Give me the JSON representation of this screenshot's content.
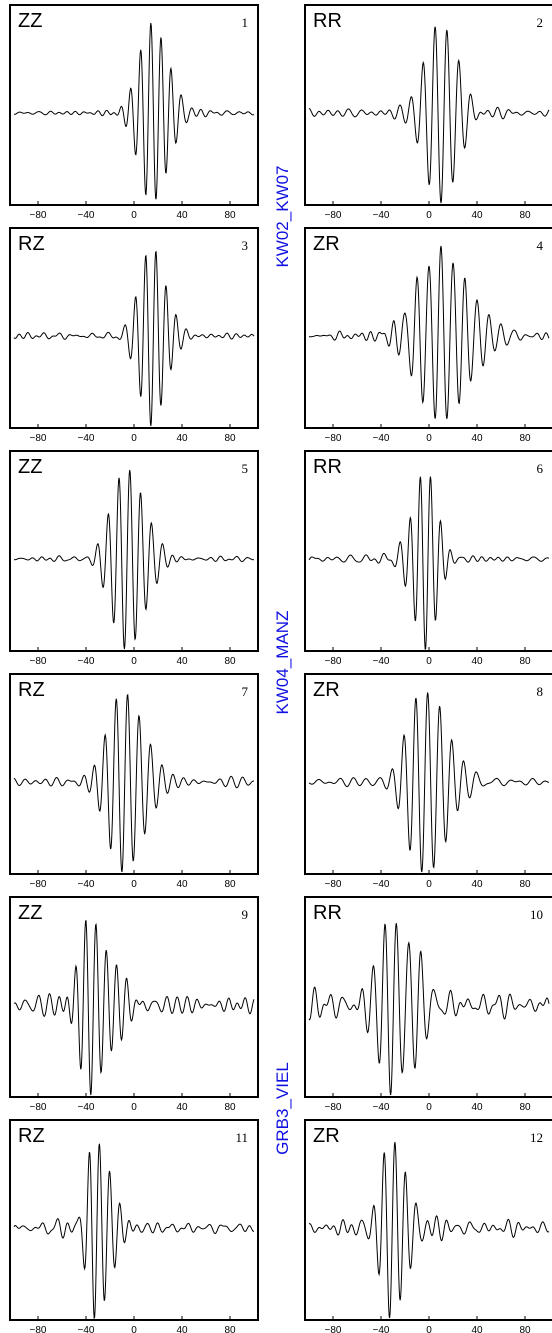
{
  "figure": {
    "stations": [
      {
        "name": "KW02_KW07",
        "rows": [
          0,
          1
        ]
      },
      {
        "name": "KW04_MANZ",
        "rows": [
          2,
          3
        ]
      },
      {
        "name": "GRB3_VIEL",
        "rows": [
          4,
          5
        ]
      }
    ],
    "colors": {
      "trace": "#000000",
      "frame": "#000000",
      "station_label": "#1010e0"
    }
  },
  "chart_data": [
    {
      "type": "line",
      "panel": "1",
      "component": "ZZ",
      "xlim": [
        -100,
        100
      ],
      "xticks": [
        "-80",
        "-40",
        "0",
        "40",
        "80"
      ],
      "series": [
        {
          "center": 14,
          "peak_amplitude": 1.0,
          "period": 8.5,
          "envelope_width": 12,
          "asymmetry": 0.15,
          "noise_level": 0.05,
          "polarity": 1
        }
      ]
    },
    {
      "type": "line",
      "panel": "2",
      "component": "RR",
      "xlim": [
        -100,
        100
      ],
      "xticks": [
        "-80",
        "-40",
        "0",
        "40",
        "80"
      ],
      "series": [
        {
          "center": 10,
          "peak_amplitude": 1.0,
          "period": 10,
          "envelope_width": 14,
          "asymmetry": 0.0,
          "noise_level": 0.08,
          "polarity": -1
        }
      ]
    },
    {
      "type": "line",
      "panel": "3",
      "component": "RZ",
      "xlim": [
        -100,
        100
      ],
      "xticks": [
        "-80",
        "-40",
        "0",
        "40",
        "80"
      ],
      "series": [
        {
          "center": 14,
          "peak_amplitude": 1.0,
          "period": 8.5,
          "envelope_width": 11,
          "asymmetry": 0.1,
          "noise_level": 0.06,
          "polarity": -1
        }
      ]
    },
    {
      "type": "line",
      "panel": "4",
      "component": "ZR",
      "xlim": [
        -100,
        100
      ],
      "xticks": [
        "-80",
        "-40",
        "0",
        "40",
        "80"
      ],
      "series": [
        {
          "center": 10,
          "peak_amplitude": 1.0,
          "period": 10,
          "envelope_width": 22,
          "asymmetry": 0.1,
          "noise_level": 0.1,
          "polarity": 1
        }
      ]
    },
    {
      "type": "line",
      "panel": "5",
      "component": "ZZ",
      "xlim": [
        -100,
        100
      ],
      "xticks": [
        "-80",
        "-40",
        "0",
        "40",
        "80"
      ],
      "series": [
        {
          "center": -8,
          "peak_amplitude": 1.0,
          "period": 9,
          "envelope_width": 14,
          "asymmetry": 0.2,
          "noise_level": 0.06,
          "polarity": -1
        }
      ]
    },
    {
      "type": "line",
      "panel": "6",
      "component": "RR",
      "xlim": [
        -100,
        100
      ],
      "xticks": [
        "-80",
        "-40",
        "0",
        "40",
        "80"
      ],
      "series": [
        {
          "center": -3,
          "peak_amplitude": 1.0,
          "period": 8.5,
          "envelope_width": 10,
          "asymmetry": 0.0,
          "noise_level": 0.08,
          "polarity": -1
        }
      ]
    },
    {
      "type": "line",
      "panel": "7",
      "component": "RZ",
      "xlim": [
        -100,
        100
      ],
      "xticks": [
        "-80",
        "-40",
        "0",
        "40",
        "80"
      ],
      "series": [
        {
          "center": -10,
          "peak_amplitude": 1.0,
          "period": 9.5,
          "envelope_width": 16,
          "asymmetry": 0.2,
          "noise_level": 0.1,
          "polarity": -1
        }
      ]
    },
    {
      "type": "line",
      "panel": "8",
      "component": "ZR",
      "xlim": [
        -100,
        100
      ],
      "xticks": [
        "-80",
        "-40",
        "0",
        "40",
        "80"
      ],
      "series": [
        {
          "center": -6,
          "peak_amplitude": 1.0,
          "period": 10,
          "envelope_width": 16,
          "asymmetry": 0.2,
          "noise_level": 0.08,
          "polarity": -1
        }
      ]
    },
    {
      "type": "line",
      "panel": "9",
      "component": "ZZ",
      "xlim": [
        -100,
        100
      ],
      "xticks": [
        "-80",
        "-40",
        "0",
        "40",
        "80"
      ],
      "series": [
        {
          "center": -36,
          "peak_amplitude": 1.0,
          "period": 8.5,
          "envelope_width": 13,
          "asymmetry": 0.25,
          "noise_level": 0.18,
          "polarity": -1
        }
      ]
    },
    {
      "type": "line",
      "panel": "10",
      "component": "RR",
      "xlim": [
        -100,
        100
      ],
      "xticks": [
        "-80",
        "-40",
        "0",
        "40",
        "80"
      ],
      "series": [
        {
          "center": -32,
          "peak_amplitude": 1.0,
          "period": 10,
          "envelope_width": 14,
          "asymmetry": 0.3,
          "noise_level": 0.2,
          "polarity": -1
        }
      ]
    },
    {
      "type": "line",
      "panel": "11",
      "component": "RZ",
      "xlim": [
        -100,
        100
      ],
      "xticks": [
        "-80",
        "-40",
        "0",
        "40",
        "80"
      ],
      "series": [
        {
          "center": -33,
          "peak_amplitude": 1.0,
          "period": 8.5,
          "envelope_width": 9,
          "asymmetry": 0.3,
          "noise_level": 0.12,
          "polarity": -1
        }
      ]
    },
    {
      "type": "line",
      "panel": "12",
      "component": "ZR",
      "xlim": [
        -100,
        100
      ],
      "xticks": [
        "-80",
        "-40",
        "0",
        "40",
        "80"
      ],
      "series": [
        {
          "center": -33,
          "peak_amplitude": 1.0,
          "period": 9,
          "envelope_width": 12,
          "asymmetry": 0.3,
          "noise_level": 0.14,
          "polarity": -1
        }
      ]
    }
  ]
}
